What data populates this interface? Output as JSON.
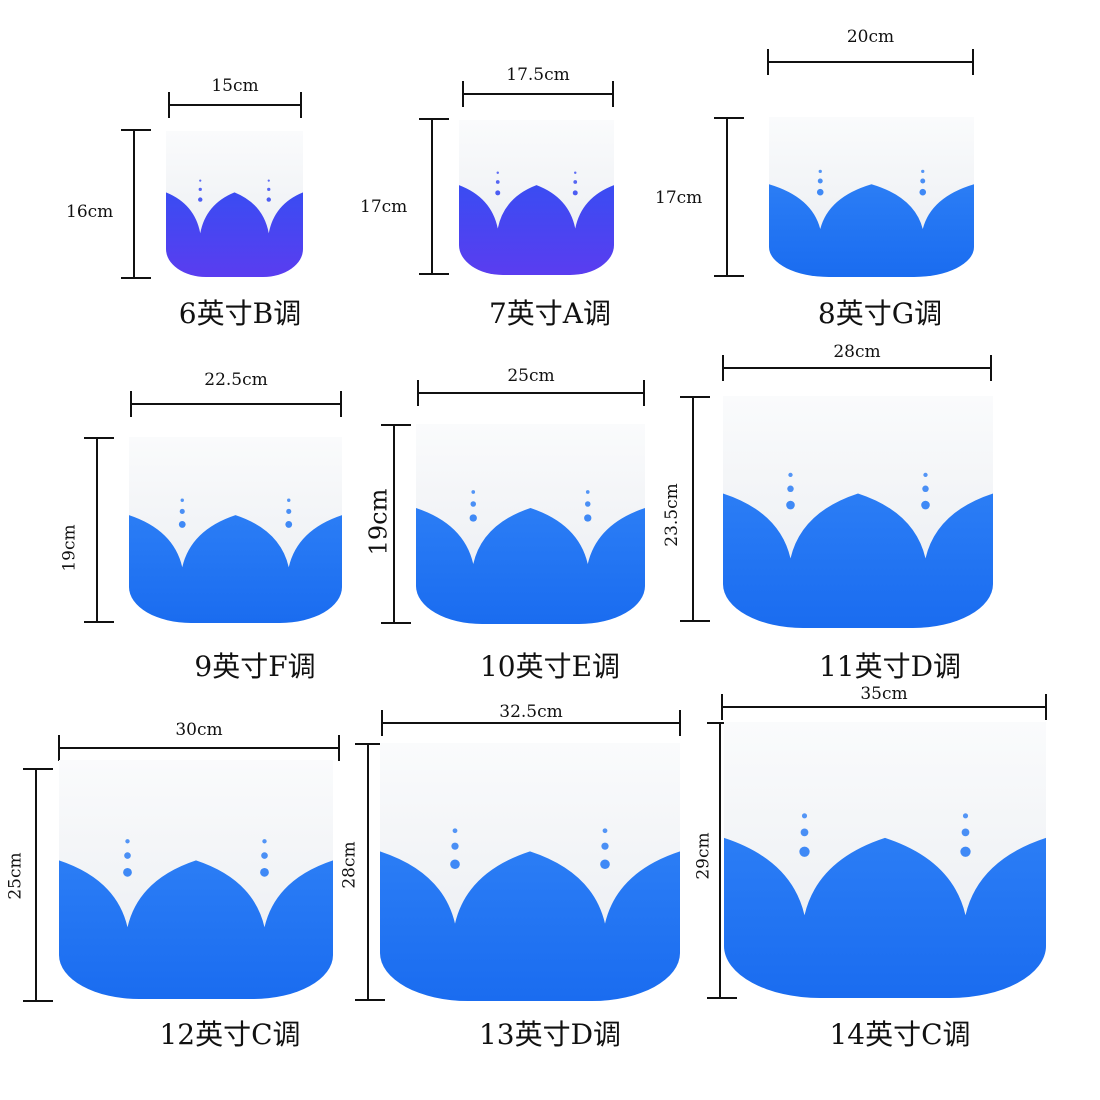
{
  "colors": {
    "blue": "#1a6cf0",
    "violet": "#5a3df0",
    "frost": "#f3f5f8"
  },
  "bowls": [
    {
      "caption": "6英寸B调",
      "width": "15cm",
      "height": "16cm",
      "tone": "violet"
    },
    {
      "caption": "7英寸A调",
      "width": "17.5cm",
      "height": "17cm",
      "tone": "violet"
    },
    {
      "caption": "8英寸G调",
      "width": "20cm",
      "height": "17cm",
      "tone": "blue"
    },
    {
      "caption": "9英寸F调",
      "width": "22.5cm",
      "height": "19cm",
      "tone": "blue"
    },
    {
      "caption": "10英寸E调",
      "width": "25cm",
      "height": "19cm",
      "tone": "blue"
    },
    {
      "caption": "11英寸D调",
      "width": "28cm",
      "height": "23.5cm",
      "tone": "blue"
    },
    {
      "caption": "12英寸C调",
      "width": "30cm",
      "height": "25cm",
      "tone": "blue"
    },
    {
      "caption": "13英寸D调",
      "width": "32.5cm",
      "height": "28cm",
      "tone": "blue"
    },
    {
      "caption": "14英寸C调",
      "width": "35cm",
      "height": "29cm",
      "tone": "blue"
    }
  ]
}
